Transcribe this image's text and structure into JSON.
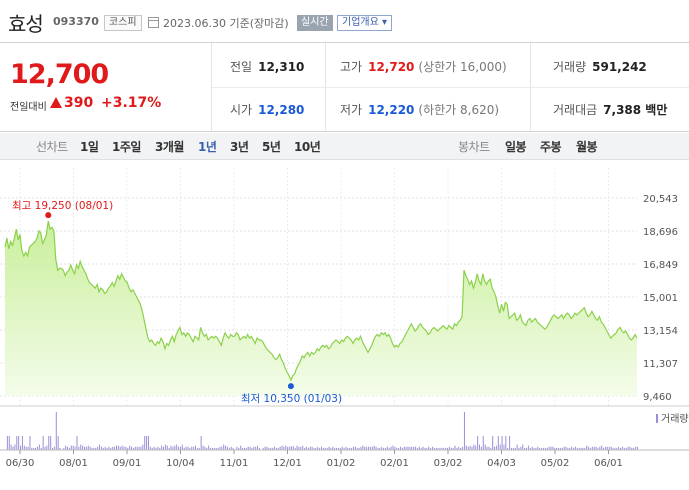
{
  "header": {
    "stock_name": "효성",
    "stock_code": "093370",
    "market": "코스피",
    "as_of": "2023.06.30 기준(장마감)",
    "realtime_label": "실시간",
    "company_info_label": "기업개요 ▾"
  },
  "summary": {
    "price": "12,700",
    "change_label": "전일대비",
    "change": "390",
    "change_rate": "+3.17%",
    "prev_close_label": "전일",
    "prev_close": "12,310",
    "open_label": "시가",
    "open": "12,280",
    "high_label": "고가",
    "high": "12,720",
    "upper_limit": "(상한가 16,000)",
    "low_label": "저가",
    "low": "12,220",
    "lower_limit": "(하한가 8,620)",
    "volume_label": "거래량",
    "volume": "591,242",
    "amount_label": "거래대금",
    "amount": "7,388 백만"
  },
  "tabs": {
    "line_chart_label": "선차트",
    "periods": [
      "1일",
      "1주일",
      "3개월",
      "1년",
      "3년",
      "5년",
      "10년"
    ],
    "active_period": "1년",
    "candle_chart_label": "봉차트",
    "candles": [
      "일봉",
      "주봉",
      "월봉"
    ]
  },
  "colors": {
    "up": "#e01a1a",
    "down": "#1a5ad6",
    "line": "#8bd04a",
    "fill_top": "#c9ef9b",
    "fill_bottom": "#f4fcea"
  },
  "chart_data": {
    "type": "area",
    "ylim": [
      9460,
      20543
    ],
    "y_ticks": [
      "20,543",
      "18,696",
      "16,849",
      "15,001",
      "13,154",
      "11,307",
      "9,460"
    ],
    "x_ticks": [
      "06/30",
      "08/01",
      "09/01",
      "10/04",
      "11/01",
      "12/01",
      "01/02",
      "02/01",
      "03/02",
      "04/03",
      "05/02",
      "06/01"
    ],
    "max_label": "최고 19,250 (08/01)",
    "min_label": "최저 10,350 (01/03)",
    "volume_label": "거래량",
    "values": [
      17800,
      18300,
      17700,
      18100,
      17900,
      18300,
      18800,
      18200,
      18500,
      17600,
      17300,
      17500,
      17300,
      17800,
      17900,
      18000,
      18100,
      18300,
      18700,
      18600,
      18000,
      18200,
      18500,
      19250,
      18800,
      18900,
      18700,
      17100,
      16500,
      16600,
      16600,
      16500,
      16200,
      16400,
      16500,
      16800,
      16500,
      16300,
      16800,
      16600,
      17000,
      16700,
      16500,
      16300,
      16000,
      15800,
      15700,
      15600,
      15500,
      15700,
      15300,
      15500,
      15400,
      15200,
      15300,
      15500,
      15600,
      15800,
      15600,
      15900,
      16200,
      16000,
      16300,
      16100,
      15900,
      15800,
      15500,
      15300,
      15400,
      15200,
      15000,
      14800,
      14600,
      14200,
      13700,
      13200,
      12700,
      12500,
      12600,
      12400,
      12300,
      12500,
      12400,
      12700,
      12500,
      12100,
      12400,
      12300,
      12600,
      12800,
      12500,
      12900,
      13100,
      13300,
      12900,
      13000,
      12800,
      13000,
      12900,
      12700,
      12500,
      12800,
      12700,
      12600,
      13300,
      13000,
      12800,
      12900,
      12600,
      12700,
      12800,
      12700,
      12800,
      12700,
      12500,
      12300,
      12700,
      13000,
      12800,
      12700,
      12900,
      12800,
      12800,
      13000,
      12900,
      12600,
      12700,
      12800,
      12700,
      12900,
      12700,
      12800,
      12600,
      12400,
      12700,
      12600,
      12600,
      12500,
      12300,
      12100,
      12000,
      11900,
      11800,
      11600,
      11500,
      11600,
      11800,
      11500,
      11300,
      11000,
      10800,
      10600,
      10350,
      10600,
      10700,
      11000,
      11200,
      11400,
      11700,
      11600,
      11800,
      11900,
      11700,
      11900,
      11800,
      11900,
      12100,
      12000,
      12200,
      12300,
      12200,
      12300,
      12100,
      12200,
      12400,
      12500,
      12600,
      12500,
      12400,
      12600,
      12500,
      12700,
      12800,
      12700,
      12600,
      12400,
      12600,
      12700,
      12600,
      12800,
      12500,
      12300,
      12100,
      11900,
      12100,
      12300,
      12600,
      12800,
      12900,
      12800,
      13000,
      12900,
      13000,
      12800,
      12900,
      12700,
      12400,
      12200,
      12300,
      12200,
      12400,
      12500,
      12700,
      12900,
      13100,
      13300,
      13500,
      13300,
      13100,
      13200,
      13400,
      13500,
      13300,
      13200,
      13100,
      12900,
      13000,
      13200,
      13300,
      13200,
      13100,
      13200,
      13300,
      13400,
      13300,
      13200,
      13400,
      13300,
      13200,
      13500,
      13400,
      13600,
      13700,
      13900,
      16500,
      16200,
      16000,
      15700,
      15900,
      15500,
      15800,
      16300,
      15900,
      15700,
      16300,
      15900,
      15700,
      15900,
      16000,
      15500,
      15300,
      15000,
      14500,
      14100,
      14600,
      14200,
      14700,
      14600,
      13800,
      13900,
      14000,
      14100,
      13700,
      13800,
      14000,
      13600,
      13500,
      13400,
      13700,
      13800,
      13600,
      13700,
      13800,
      13600,
      13500,
      13400,
      13300,
      13200,
      13300,
      13500,
      13700,
      13900,
      14000,
      13900,
      13800,
      13900,
      14000,
      13800,
      14000,
      14100,
      14000,
      13800,
      13900,
      14100,
      14000,
      14100,
      14200,
      14300,
      14400,
      14100,
      13900,
      14000,
      14200,
      14000,
      13800,
      13700,
      13900,
      13600,
      13500,
      13300,
      13100,
      12900,
      12700,
      12800,
      12900,
      13000,
      13200,
      13300,
      13100,
      13000,
      13100,
      12900,
      12700,
      12600,
      12700,
      12900,
      12700
    ]
  }
}
